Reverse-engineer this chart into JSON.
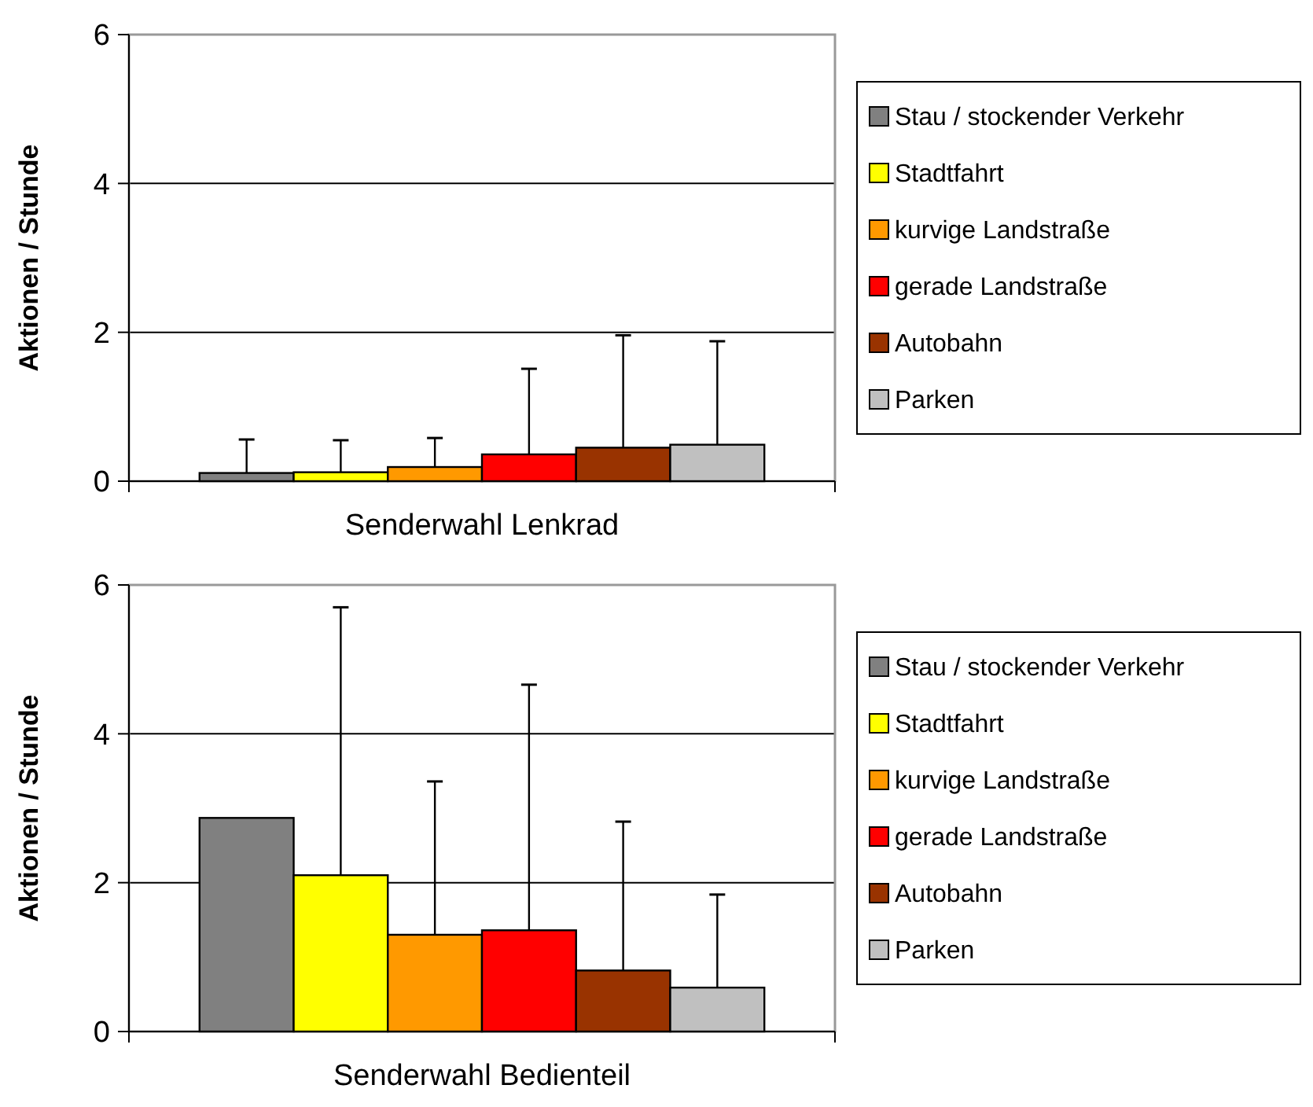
{
  "chart_data": [
    {
      "type": "bar",
      "categories": [
        "Senderwahl Lenkrad"
      ],
      "ylabel": "Aktionen / Stunde",
      "ylim": [
        0,
        6
      ],
      "yticks": [
        0,
        2,
        4,
        6
      ],
      "grid": "y",
      "legend": "right",
      "series": [
        {
          "name": "Stau / stockender Verkehr",
          "color": "#808080",
          "values": [
            0.11
          ],
          "errors": [
            [
              0.11,
              0.56
            ]
          ]
        },
        {
          "name": "Stadtfahrt",
          "color": "#ffff00",
          "values": [
            0.12
          ],
          "errors": [
            [
              0.12,
              0.55
            ]
          ]
        },
        {
          "name": "kurvige Landstraße",
          "color": "#ff9900",
          "values": [
            0.19
          ],
          "errors": [
            [
              0.19,
              0.58
            ]
          ]
        },
        {
          "name": "gerade Landstraße",
          "color": "#ff0000",
          "values": [
            0.36
          ],
          "errors": [
            [
              0.36,
              1.51
            ]
          ]
        },
        {
          "name": "Autobahn",
          "color": "#993300",
          "values": [
            0.45
          ],
          "errors": [
            [
              0.45,
              1.96
            ]
          ]
        },
        {
          "name": "Parken",
          "color": "#c0c0c0",
          "values": [
            0.49
          ],
          "errors": [
            [
              0.49,
              1.88
            ]
          ]
        }
      ]
    },
    {
      "type": "bar",
      "categories": [
        "Senderwahl Bedienteil"
      ],
      "ylabel": "Aktionen / Stunde",
      "ylim": [
        0,
        6
      ],
      "yticks": [
        0,
        2,
        4,
        6
      ],
      "grid": "y",
      "legend": "right",
      "series": [
        {
          "name": "Stau / stockender Verkehr",
          "color": "#808080",
          "values": [
            2.87
          ],
          "errors": [
            null
          ]
        },
        {
          "name": "Stadtfahrt",
          "color": "#ffff00",
          "values": [
            2.1
          ],
          "errors": [
            [
              2.1,
              5.7
            ]
          ]
        },
        {
          "name": "kurvige Landstraße",
          "color": "#ff9900",
          "values": [
            1.3
          ],
          "errors": [
            [
              1.3,
              3.36
            ]
          ]
        },
        {
          "name": "gerade Landstraße",
          "color": "#ff0000",
          "values": [
            1.36
          ],
          "errors": [
            [
              1.36,
              4.66
            ]
          ]
        },
        {
          "name": "Autobahn",
          "color": "#993300",
          "values": [
            0.82
          ],
          "errors": [
            [
              0.82,
              2.82
            ]
          ]
        },
        {
          "name": "Parken",
          "color": "#c0c0c0",
          "values": [
            0.59
          ],
          "errors": [
            [
              0.59,
              1.84
            ]
          ]
        }
      ]
    }
  ]
}
